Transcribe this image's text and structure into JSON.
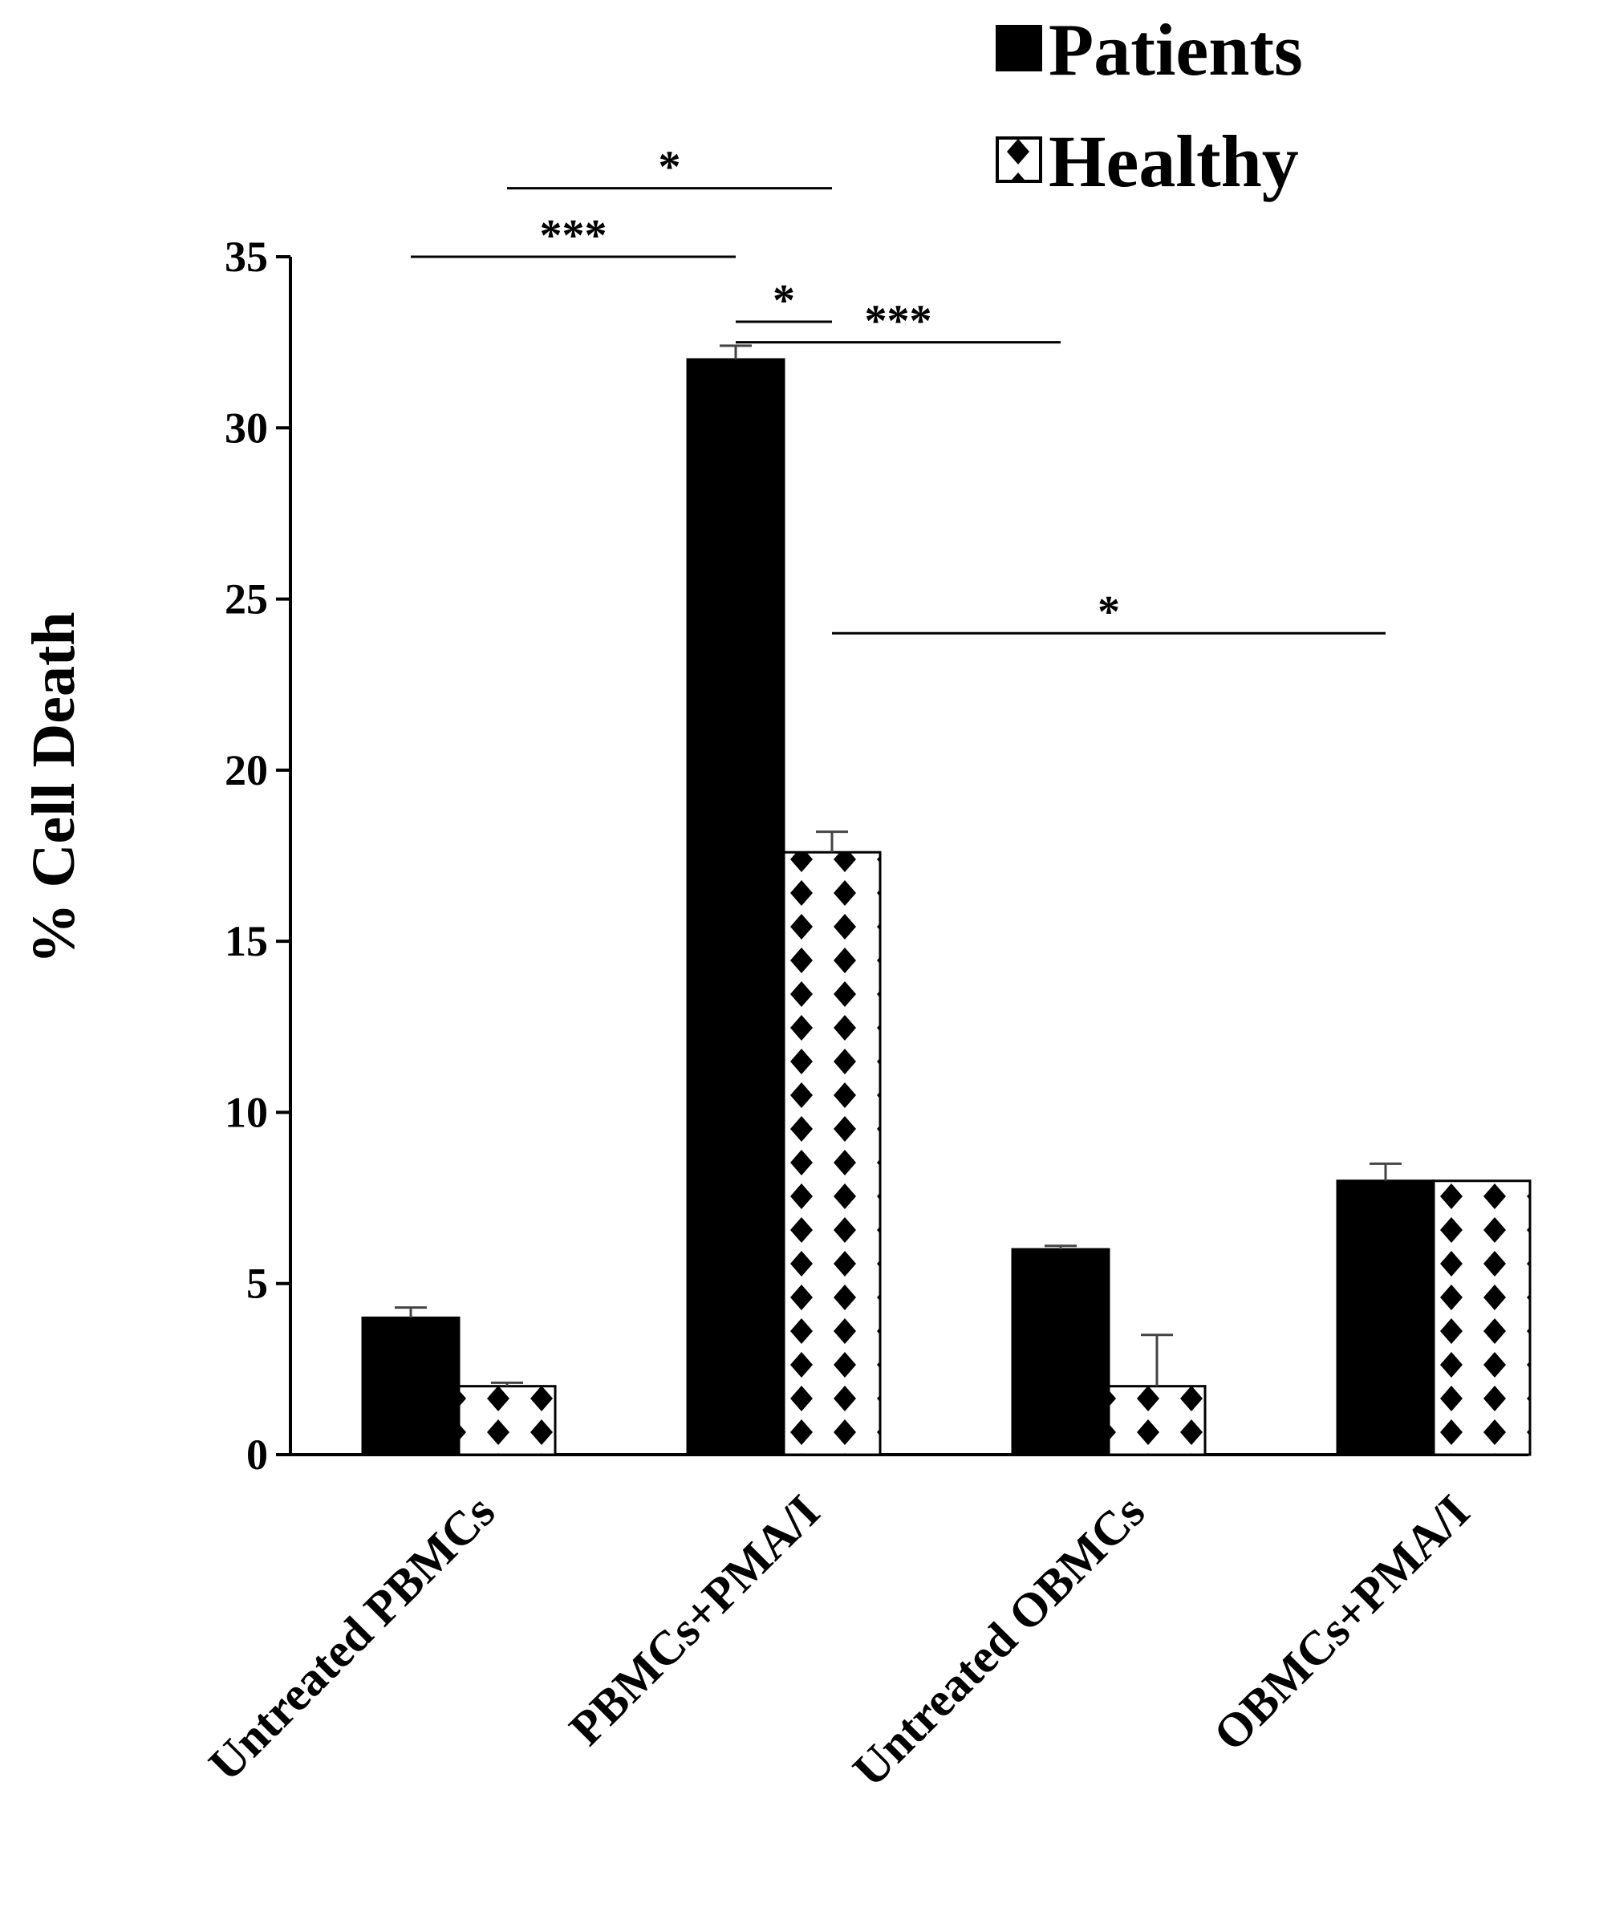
{
  "chart_data": {
    "type": "bar",
    "title": "",
    "xlabel": "",
    "ylabel": "% Cell Death",
    "ylim": [
      0,
      35
    ],
    "yticks": [
      0,
      5,
      10,
      15,
      20,
      25,
      30,
      35
    ],
    "categories": [
      "Untreated PBMCs",
      "PBMCs+PMA/I",
      "Untreated OBMCs",
      "OBMCs+PMA/I"
    ],
    "series": [
      {
        "name": "Patients",
        "fill": "solid",
        "color": "#000000",
        "values": [
          4.0,
          32.0,
          6.0,
          8.0
        ],
        "errors": [
          0.3,
          0.4,
          0.1,
          0.5
        ]
      },
      {
        "name": "Healthy",
        "fill": "diamond-pattern",
        "color": "#000000",
        "values": [
          2.0,
          17.6,
          2.0,
          8.0
        ],
        "errors": [
          0.1,
          0.6,
          1.5,
          0.0
        ]
      }
    ],
    "legend": {
      "position": "top-right",
      "entries": [
        "Patients",
        "Healthy"
      ]
    },
    "significance": [
      {
        "label": "*",
        "from": {
          "category": 0,
          "series": 1
        },
        "to": {
          "category": 1,
          "series": 1
        },
        "level": 37.0
      },
      {
        "label": "***",
        "from": {
          "category": 0,
          "series": 0
        },
        "to": {
          "category": 1,
          "series": 0
        },
        "level": 35.0
      },
      {
        "label": "*",
        "from": {
          "category": 1,
          "series": 0
        },
        "to": {
          "category": 1,
          "series": 1
        },
        "level": 33.1
      },
      {
        "label": "***",
        "from": {
          "category": 1,
          "series": 0
        },
        "to": {
          "category": 2,
          "series": 0
        },
        "level": 32.5
      },
      {
        "label": "*",
        "from": {
          "category": 1,
          "series": 1
        },
        "to": {
          "category": 3,
          "series": 0
        },
        "level": 24.0
      }
    ]
  }
}
